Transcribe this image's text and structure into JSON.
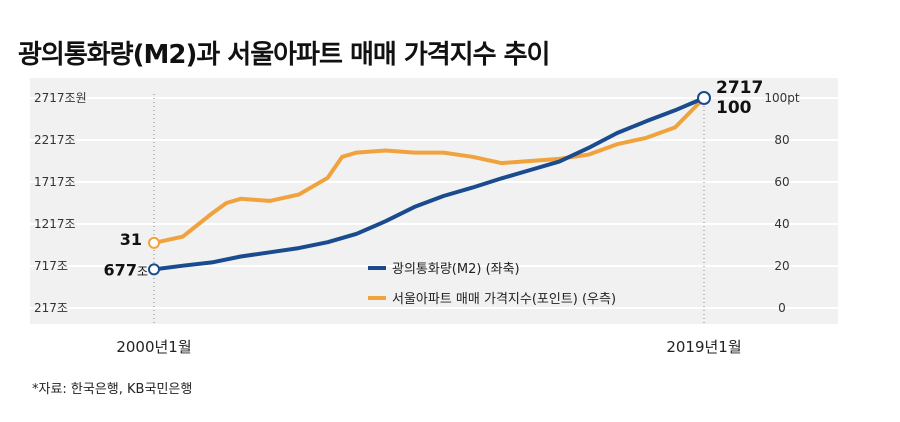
{
  "header": {
    "title": "광의통화량(M2)과 서울아파트 매매 가격지수 추이"
  },
  "footer": {
    "source": "*자료: 한국은행, KB국민은행"
  },
  "colors": {
    "m2": "#1a4b8e",
    "apt": "#f0a33c",
    "panel": "#f1f1f1",
    "grid": "#ffffff"
  },
  "chart_data": {
    "type": "line",
    "title": "광의통화량(M2)과 서울아파트 매매 가격지수 추이",
    "x_ticks": [
      "2000년1월",
      "2019년1월"
    ],
    "x_range": [
      2000,
      2019
    ],
    "left_axis": {
      "ticks": [
        "2717조원",
        "2217조",
        "1717조",
        "1217조",
        "717조",
        "217조"
      ],
      "tick_values": [
        2717,
        2217,
        1717,
        1217,
        717,
        217
      ],
      "range": [
        217,
        2717
      ]
    },
    "right_axis": {
      "ticks": [
        "100pt",
        "80",
        "60",
        "40",
        "20",
        "0"
      ],
      "tick_values": [
        100,
        80,
        60,
        40,
        20,
        0
      ],
      "range": [
        0,
        100
      ]
    },
    "series": [
      {
        "name": "광의통화량(M2) (좌축)",
        "axis": "left",
        "x": [
          2000,
          2001,
          2002,
          2003,
          2004,
          2005,
          2006,
          2007,
          2008,
          2009,
          2010,
          2011,
          2012,
          2013,
          2014,
          2015,
          2016,
          2017,
          2018,
          2019
        ],
        "values": [
          677,
          720,
          760,
          830,
          880,
          930,
          1000,
          1100,
          1250,
          1420,
          1550,
          1650,
          1760,
          1860,
          1960,
          2120,
          2300,
          2440,
          2570,
          2717
        ]
      },
      {
        "name": "서울아파트 매매 가격지수(포인트) (우측)",
        "axis": "right",
        "x": [
          2000,
          2001,
          2002,
          2002.5,
          2003,
          2004,
          2005,
          2006,
          2006.5,
          2007,
          2008,
          2009,
          2010,
          2011,
          2012,
          2013,
          2014,
          2015,
          2016,
          2017,
          2018,
          2019
        ],
        "values": [
          31,
          34,
          45,
          50,
          52,
          51,
          54,
          62,
          72,
          74,
          75,
          74,
          74,
          72,
          69,
          70,
          71,
          73,
          78,
          81,
          86,
          100
        ]
      }
    ],
    "annotations": {
      "m2_start": "677",
      "m2_start_unit": "조",
      "apt_start": "31",
      "m2_end": "2717",
      "apt_end": "100"
    },
    "legend": [
      "광의통화량(M2) (좌축)",
      "서울아파트 매매 가격지수(포인트) (우측)"
    ],
    "legend_position": "center-right"
  }
}
